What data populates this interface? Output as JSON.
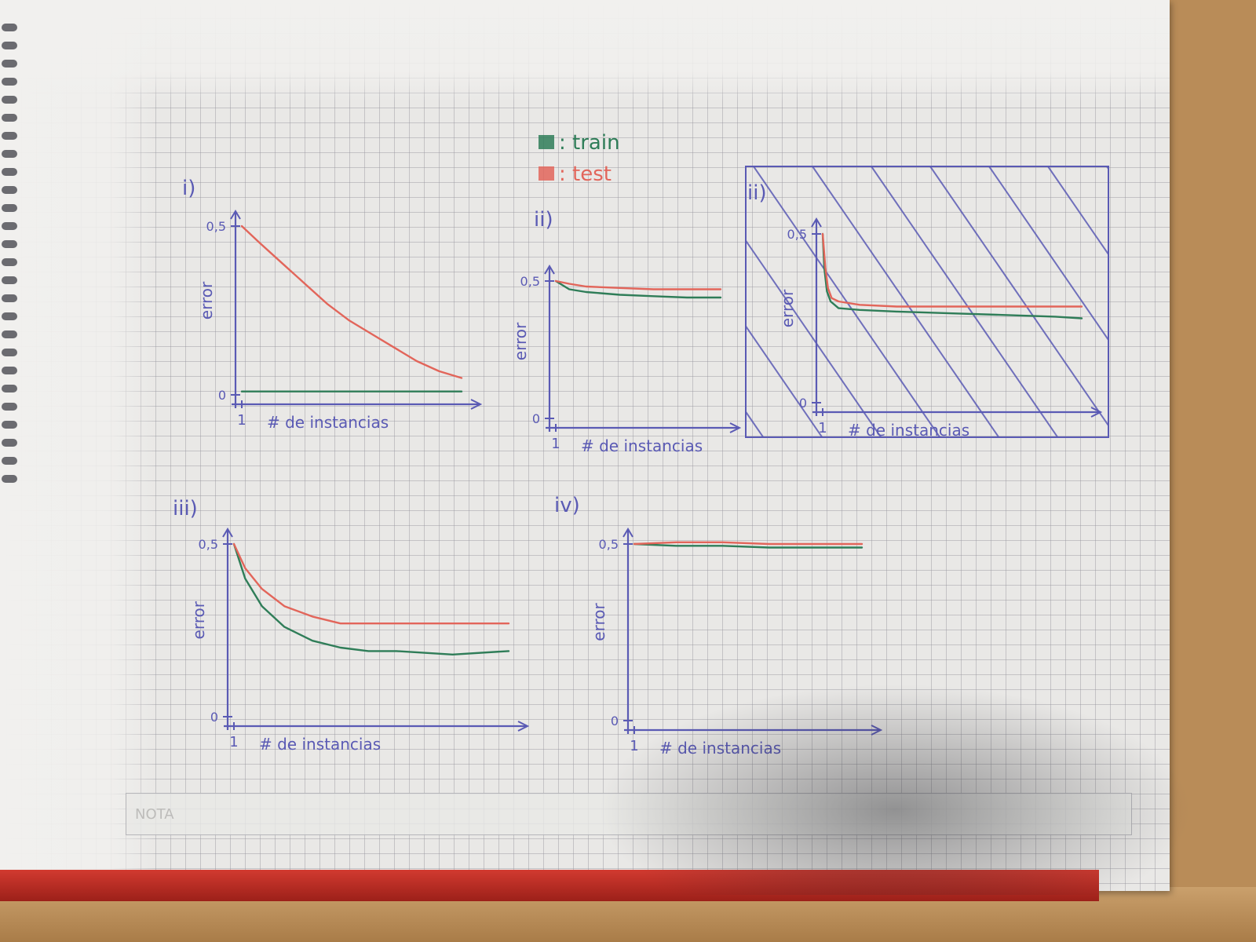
{
  "legend": {
    "entries": [
      {
        "label": ": train",
        "color": "#2f7d58"
      },
      {
        "label": ": test",
        "color": "#e2655a"
      }
    ]
  },
  "colors": {
    "axis": "#5a5ab4",
    "train": "#2f7d58",
    "test": "#e2655a"
  },
  "footer": {
    "nota": "NOTA"
  },
  "chart_data": [
    {
      "type": "line",
      "panel_label": "i)",
      "ylabel": "error",
      "xlabel": "# de instancias",
      "y_ticks": [
        "0,5",
        "0"
      ],
      "x_ticks": [
        "1"
      ],
      "ylim": [
        0,
        0.5
      ],
      "series": [
        {
          "name": "train",
          "x": [
            1,
            10,
            20,
            30,
            40,
            50
          ],
          "y": [
            0.01,
            0.01,
            0.01,
            0.01,
            0.01,
            0.01
          ]
        },
        {
          "name": "test",
          "x": [
            1,
            5,
            10,
            15,
            20,
            25,
            30,
            35,
            40,
            45,
            50
          ],
          "y": [
            0.5,
            0.45,
            0.39,
            0.33,
            0.27,
            0.22,
            0.18,
            0.14,
            0.1,
            0.07,
            0.05
          ]
        }
      ]
    },
    {
      "type": "line",
      "panel_label": "ii)",
      "ylabel": "error",
      "xlabel": "# de instancias",
      "y_ticks": [
        "0,5",
        "0"
      ],
      "x_ticks": [
        "1"
      ],
      "ylim": [
        0,
        0.5
      ],
      "series": [
        {
          "name": "train",
          "x": [
            1,
            5,
            10,
            20,
            30,
            40,
            50
          ],
          "y": [
            0.5,
            0.47,
            0.46,
            0.45,
            0.445,
            0.44,
            0.44
          ]
        },
        {
          "name": "test",
          "x": [
            1,
            5,
            10,
            20,
            30,
            40,
            50
          ],
          "y": [
            0.5,
            0.49,
            0.48,
            0.475,
            0.47,
            0.47,
            0.47
          ]
        }
      ]
    },
    {
      "type": "line",
      "panel_label": "ii)",
      "ylabel": "error",
      "xlabel": "# de instancias",
      "y_ticks": [
        "0,5",
        "0"
      ],
      "x_ticks": [
        "1"
      ],
      "ylim": [
        0,
        0.5
      ],
      "hatched": true,
      "series": [
        {
          "name": "train",
          "x": [
            1,
            1.3,
            1.8,
            2.5,
            4,
            8,
            15,
            25,
            35,
            45,
            50
          ],
          "y": [
            0.5,
            0.4,
            0.33,
            0.3,
            0.28,
            0.275,
            0.27,
            0.265,
            0.26,
            0.255,
            0.25
          ]
        },
        {
          "name": "test",
          "x": [
            1,
            1.5,
            2,
            2.7,
            4,
            8,
            15,
            25,
            35,
            45,
            50
          ],
          "y": [
            0.5,
            0.4,
            0.34,
            0.31,
            0.3,
            0.29,
            0.285,
            0.285,
            0.285,
            0.285,
            0.285
          ]
        }
      ]
    },
    {
      "type": "line",
      "panel_label": "iii)",
      "ylabel": "error",
      "xlabel": "# de instancias",
      "y_ticks": [
        "0,5",
        "0"
      ],
      "x_ticks": [
        "1"
      ],
      "ylim": [
        0,
        0.5
      ],
      "series": [
        {
          "name": "train",
          "x": [
            1,
            3,
            6,
            10,
            15,
            20,
            25,
            30,
            40,
            50
          ],
          "y": [
            0.5,
            0.4,
            0.32,
            0.26,
            0.22,
            0.2,
            0.19,
            0.19,
            0.18,
            0.19
          ]
        },
        {
          "name": "test",
          "x": [
            1,
            3,
            6,
            10,
            15,
            20,
            25,
            30,
            40,
            50
          ],
          "y": [
            0.5,
            0.43,
            0.37,
            0.32,
            0.29,
            0.27,
            0.27,
            0.27,
            0.27,
            0.27
          ]
        }
      ]
    },
    {
      "type": "line",
      "panel_label": "iv)",
      "ylabel": "error",
      "xlabel": "# de instancias",
      "y_ticks": [
        "0,5",
        "0"
      ],
      "x_ticks": [
        "1"
      ],
      "ylim": [
        0,
        0.5
      ],
      "series": [
        {
          "name": "train",
          "x": [
            1,
            10,
            20,
            30,
            40,
            50
          ],
          "y": [
            0.5,
            0.495,
            0.495,
            0.49,
            0.49,
            0.49
          ]
        },
        {
          "name": "test",
          "x": [
            1,
            10,
            20,
            30,
            40,
            50
          ],
          "y": [
            0.5,
            0.505,
            0.505,
            0.5,
            0.5,
            0.5
          ]
        }
      ]
    }
  ]
}
